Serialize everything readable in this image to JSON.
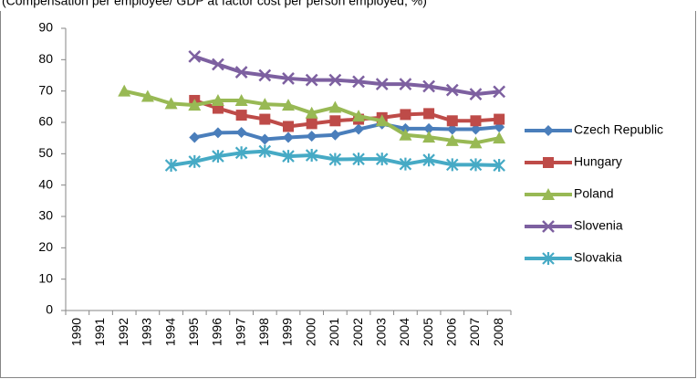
{
  "chart_data": {
    "type": "line",
    "subtitle": "(Compensation per employee/ GDP at factor cost per person employed, %)",
    "categories": [
      "1990",
      "1991",
      "1992",
      "1993",
      "1994",
      "1995",
      "1996",
      "1997",
      "1998",
      "1999",
      "2000",
      "2001",
      "2002",
      "2003",
      "2004",
      "2005",
      "2006",
      "2007",
      "2008"
    ],
    "ylim": [
      0,
      90
    ],
    "yticks": [
      0,
      10,
      20,
      30,
      40,
      50,
      60,
      70,
      80,
      90
    ],
    "grid": false,
    "legend": "right",
    "series": [
      {
        "name": "Czech Republic",
        "color": "#4a7ebb",
        "marker": "diamond",
        "values": [
          null,
          null,
          null,
          null,
          null,
          55.2,
          56.7,
          56.8,
          54.6,
          55.2,
          55.6,
          56.0,
          57.8,
          59.5,
          58.0,
          58.0,
          57.8,
          57.8,
          58.5
        ]
      },
      {
        "name": "Hungary",
        "color": "#be4b48",
        "marker": "square",
        "values": [
          null,
          null,
          null,
          null,
          null,
          67.0,
          64.5,
          62.3,
          61.0,
          58.7,
          59.6,
          60.5,
          61.0,
          61.5,
          62.5,
          62.8,
          60.5,
          60.5,
          61.0
        ]
      },
      {
        "name": "Poland",
        "color": "#98b954",
        "marker": "triangle",
        "values": [
          null,
          null,
          70.0,
          68.3,
          66.0,
          65.5,
          67.0,
          67.0,
          65.8,
          65.5,
          63.0,
          64.8,
          62.0,
          60.5,
          56.0,
          55.3,
          54.2,
          53.5,
          55.0
        ]
      },
      {
        "name": "Slovenia",
        "color": "#7d60a0",
        "marker": "cross",
        "values": [
          null,
          null,
          null,
          null,
          null,
          81.0,
          78.5,
          76.0,
          75.0,
          74.0,
          73.5,
          73.5,
          73.0,
          72.2,
          72.2,
          71.5,
          70.3,
          69.0,
          69.8
        ]
      },
      {
        "name": "Slovakia",
        "color": "#46aac5",
        "marker": "star",
        "values": [
          null,
          null,
          null,
          null,
          46.3,
          47.5,
          49.2,
          50.3,
          50.8,
          49.2,
          49.5,
          48.2,
          48.3,
          48.3,
          46.7,
          48.0,
          46.5,
          46.5,
          46.3
        ]
      }
    ]
  }
}
